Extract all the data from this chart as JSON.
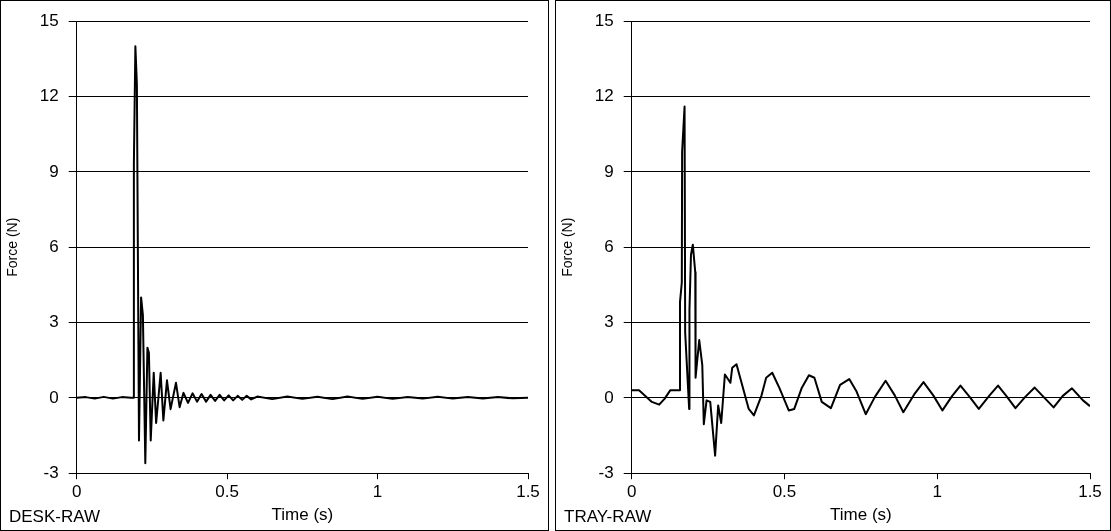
{
  "chart_data": [
    {
      "type": "line",
      "xlabel": "Time (s)",
      "ylabel": "Force (N)",
      "annotations": [
        "DESK-RAW"
      ],
      "series": [
        {
          "color": "#000000",
          "x": [
            0,
            0.03,
            0.06,
            0.09,
            0.12,
            0.15,
            0.18,
            0.188,
            0.19,
            0.195,
            0.2,
            0.207,
            0.214,
            0.22,
            0.228,
            0.235,
            0.24,
            0.246,
            0.256,
            0.264,
            0.279,
            0.288,
            0.3,
            0.312,
            0.33,
            0.342,
            0.355,
            0.37,
            0.385,
            0.4,
            0.415,
            0.43,
            0.445,
            0.46,
            0.475,
            0.49,
            0.505,
            0.52,
            0.535,
            0.55,
            0.565,
            0.58,
            0.6,
            0.65,
            0.7,
            0.75,
            0.8,
            0.85,
            0.9,
            0.95,
            1,
            1.05,
            1.1,
            1.15,
            1.2,
            1.25,
            1.3,
            1.35,
            1.4,
            1.45,
            1.5
          ],
          "values": [
            0,
            0.03,
            -0.03,
            0.04,
            -0.03,
            0.03,
            0,
            0,
            9.3,
            14,
            12.5,
            -1.7,
            4,
            3.3,
            -2.6,
            2,
            1.8,
            -1.7,
            1,
            -1,
            1,
            -0.9,
            0.7,
            -0.45,
            0.6,
            -0.37,
            0.2,
            -0.2,
            0.18,
            -0.15,
            0.15,
            -0.15,
            0.12,
            -0.12,
            0.12,
            -0.1,
            0.1,
            -0.1,
            0.08,
            -0.08,
            0.08,
            -0.06,
            0.05,
            -0.05,
            0.05,
            -0.04,
            0.04,
            -0.05,
            0.05,
            -0.04,
            0.04,
            -0.04,
            0.03,
            -0.03,
            0.04,
            -0.03,
            0.03,
            -0.03,
            0.03,
            -0.02,
            0
          ]
        }
      ],
      "xlim": [
        0,
        1.5
      ],
      "xticks": [
        0,
        0.5,
        1,
        1.5
      ],
      "ylim": [
        -3,
        15
      ],
      "yticks": [
        -3,
        0,
        3,
        6,
        9,
        12,
        15
      ],
      "grid": "y",
      "marker": "none",
      "line_style": "solid"
    },
    {
      "type": "line",
      "xlabel": "Time (s)",
      "ylabel": "Force (N)",
      "annotations": [
        "TRAY-RAW"
      ],
      "series": [
        {
          "color": "#000000",
          "x": [
            0,
            0.024,
            0.066,
            0.09,
            0.108,
            0.126,
            0.155,
            0.158,
            0.164,
            0.165,
            0.173,
            0.175,
            0.188,
            0.189,
            0.194,
            0.2,
            0.208,
            0.209,
            0.221,
            0.231,
            0.236,
            0.245,
            0.257,
            0.273,
            0.283,
            0.293,
            0.305,
            0.323,
            0.329,
            0.343,
            0.355,
            0.383,
            0.4,
            0.425,
            0.44,
            0.46,
            0.484,
            0.514,
            0.532,
            0.556,
            0.58,
            0.598,
            0.622,
            0.652,
            0.682,
            0.712,
            0.736,
            0.766,
            0.796,
            0.831,
            0.861,
            0.889,
            0.927,
            0.955,
            0.987,
            1.017,
            1.049,
            1.076,
            1.106,
            1.136,
            1.172,
            1.199,
            1.226,
            1.256,
            1.288,
            1.319,
            1.351,
            1.381,
            1.411,
            1.441,
            1.477,
            1.5
          ],
          "values": [
            0.3,
            0.3,
            -0.16,
            -0.27,
            -0.03,
            0.3,
            0.3,
            3.8,
            4.6,
            9.8,
            11.6,
            2.6,
            -0.44,
            3.5,
            5.7,
            6.1,
            5,
            0.8,
            2.3,
            1.3,
            -1.05,
            -0.1,
            -0.16,
            -2.3,
            -0.3,
            -1,
            0.93,
            0.6,
            1.2,
            1.34,
            0.8,
            -0.44,
            -0.7,
            0.1,
            0.8,
            1,
            0.38,
            -0.5,
            -0.44,
            0.38,
            0.9,
            0.8,
            -0.16,
            -0.41,
            0.52,
            0.75,
            0.25,
            -0.65,
            0.04,
            0.68,
            0.1,
            -0.57,
            0.18,
            0.63,
            0.1,
            -0.5,
            0.08,
            0.49,
            0.04,
            -0.44,
            0.11,
            0.49,
            0.08,
            -0.41,
            0.04,
            0.41,
            0,
            -0.38,
            0.08,
            0.38,
            -0.1,
            -0.33
          ]
        }
      ],
      "xlim": [
        0,
        1.5
      ],
      "xticks": [
        0,
        0.5,
        1,
        1.5
      ],
      "ylim": [
        -3,
        15
      ],
      "yticks": [
        -3,
        0,
        3,
        6,
        9,
        12,
        15
      ],
      "grid": "y",
      "marker": "none",
      "line_style": "solid"
    }
  ]
}
